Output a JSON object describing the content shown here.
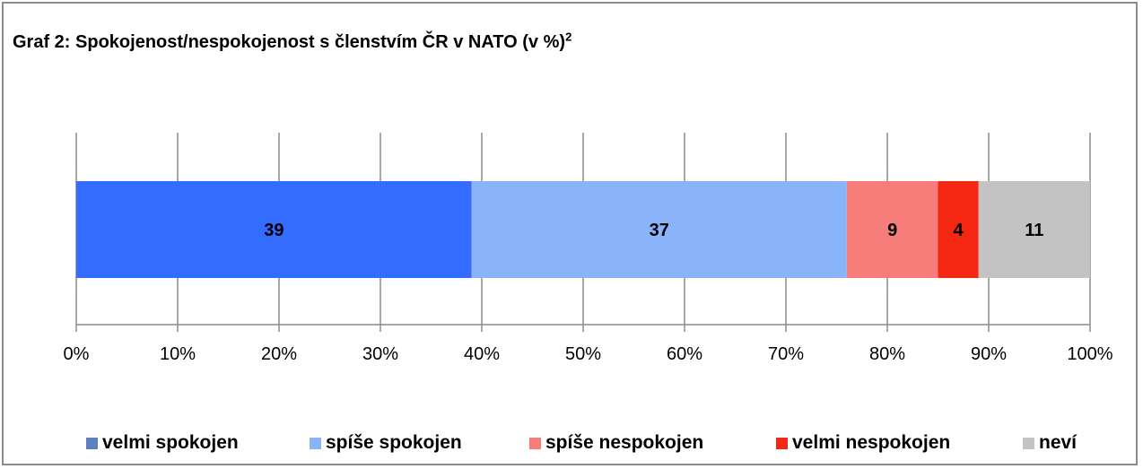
{
  "title": "Graf 2: Spokojenost/nespokojenost s členstvím ČR v NATO (v %)",
  "title_superscript": "2",
  "chart_data": {
    "type": "bar",
    "orientation": "horizontal",
    "stacked": true,
    "title": "Graf 2: Spokojenost/nespokojenost s členstvím ČR v NATO (v %)",
    "xlabel": "",
    "ylabel": "",
    "xlim": [
      0,
      100
    ],
    "x_ticks": [
      "0%",
      "10%",
      "20%",
      "30%",
      "40%",
      "50%",
      "60%",
      "70%",
      "80%",
      "90%",
      "100%"
    ],
    "grid": "vertical",
    "legend_position": "bottom",
    "series": [
      {
        "name": "velmi spokojen",
        "value": 39,
        "color": "#336cff",
        "legend_color": "#5b7fbf"
      },
      {
        "name": "spíše spokojen",
        "value": 37,
        "color": "#8ab4fa",
        "legend_color": "#8ab4fa"
      },
      {
        "name": "spíše nespokojen",
        "value": 9,
        "color": "#f77d7a",
        "legend_color": "#f77d7a"
      },
      {
        "name": "velmi nespokojen",
        "value": 4,
        "color": "#f52612",
        "legend_color": "#f52612"
      },
      {
        "name": "neví",
        "value": 11,
        "color": "#c3c3c3",
        "legend_color": "#c3c3c3"
      }
    ]
  }
}
